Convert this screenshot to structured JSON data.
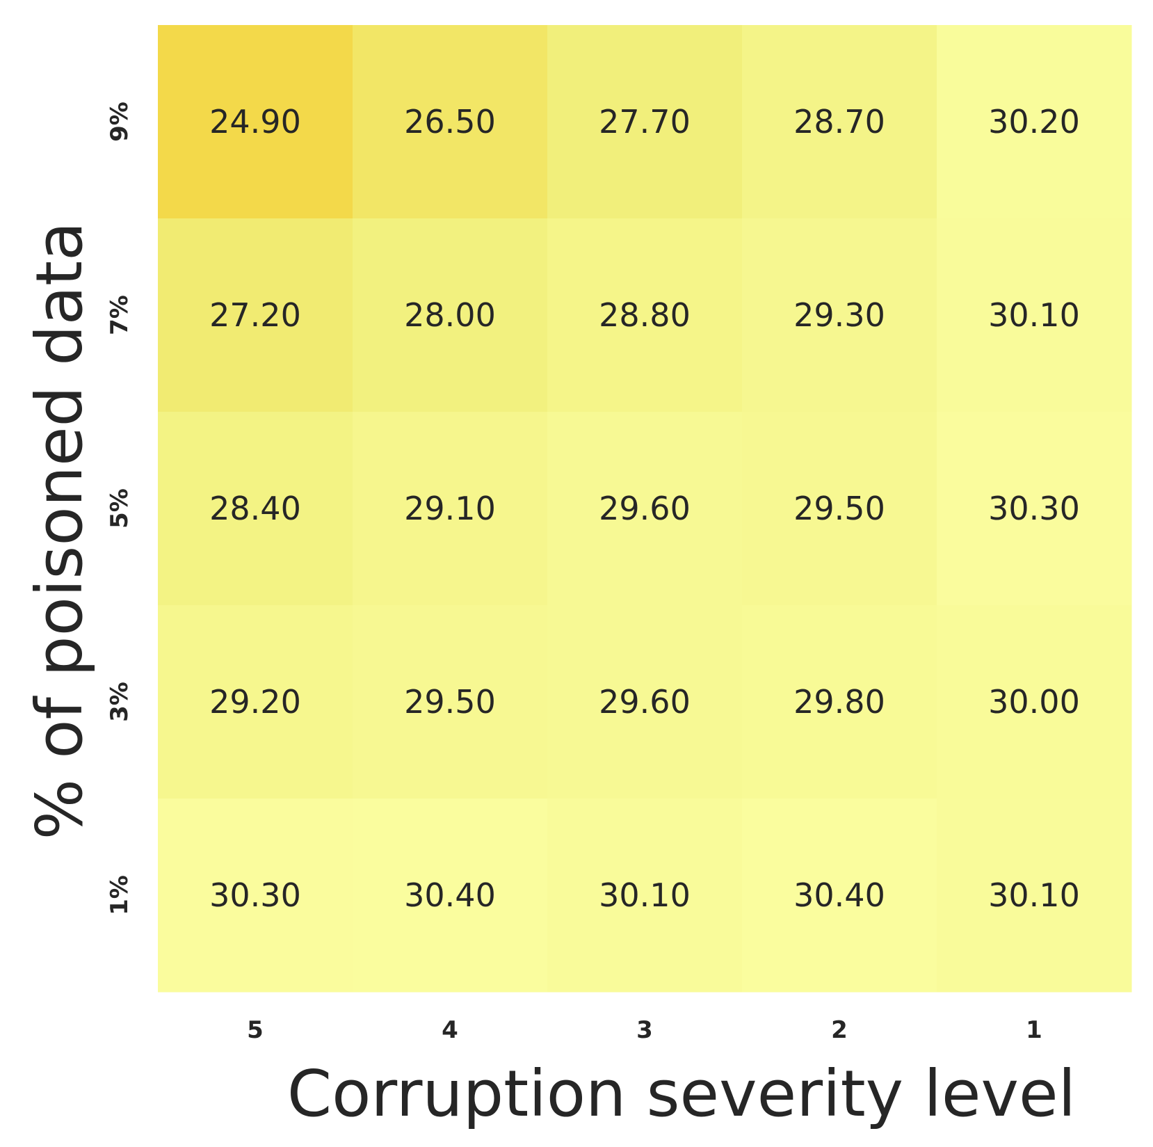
{
  "chart_data": {
    "type": "heatmap",
    "title": "",
    "xlabel": "Corruption severity level",
    "ylabel": "% of poisoned data",
    "x_categories": [
      "5",
      "4",
      "3",
      "2",
      "1"
    ],
    "y_categories": [
      "9%",
      "7%",
      "5%",
      "3%",
      "1%"
    ],
    "values": [
      [
        24.9,
        26.5,
        27.7,
        28.7,
        30.2
      ],
      [
        27.2,
        28.0,
        28.8,
        29.3,
        30.1
      ],
      [
        28.4,
        29.1,
        29.6,
        29.5,
        30.3
      ],
      [
        29.2,
        29.5,
        29.6,
        29.8,
        30.0
      ],
      [
        30.3,
        30.4,
        30.1,
        30.4,
        30.1
      ]
    ],
    "value_format": "2 decimals",
    "colormap": {
      "low": "#f3d94a",
      "mid": "#f1ef7a",
      "high": "#fafd9e"
    },
    "colorbar": false,
    "grid": false
  }
}
